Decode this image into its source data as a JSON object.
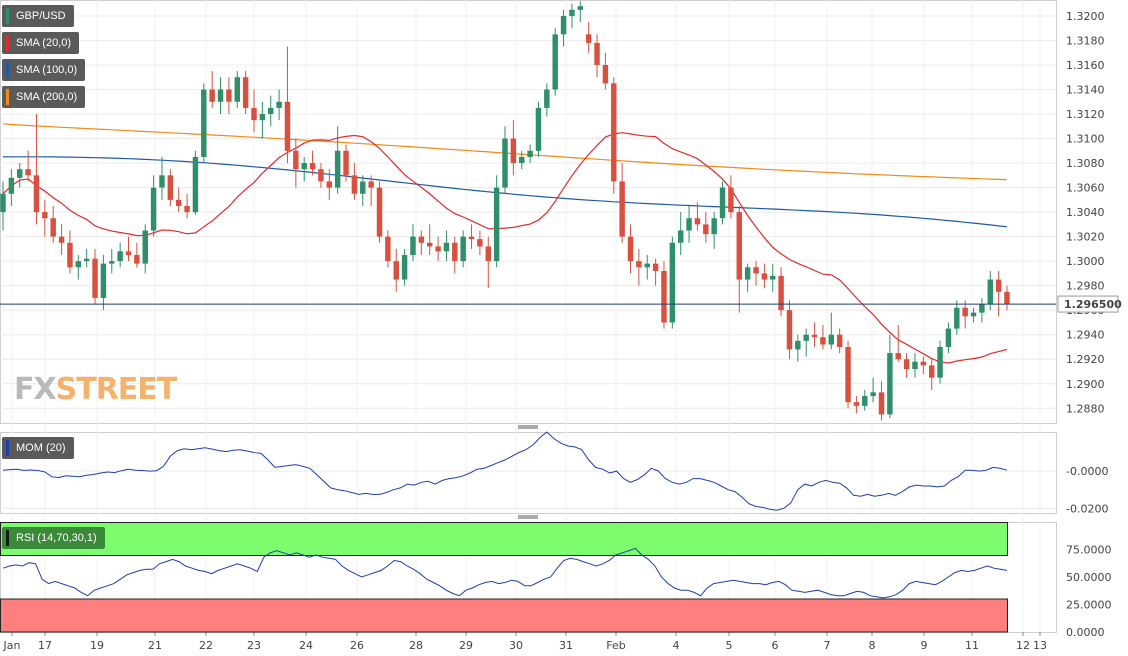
{
  "chart_data": {
    "type": "candlestick",
    "symbol": "GBP/USD",
    "indicators": [
      {
        "name": "SMA (20,0)",
        "color": "#e22b2b"
      },
      {
        "name": "SMA (100,0)",
        "color": "#1e5aa8"
      },
      {
        "name": "SMA (200,0)",
        "color": "#f28a18"
      }
    ],
    "last_price": "1.296500",
    "y_ticks": [
      "1.3200",
      "1.3180",
      "1.3160",
      "1.3140",
      "1.3120",
      "1.3100",
      "1.3080",
      "1.3060",
      "1.3040",
      "1.3020",
      "1.3000",
      "1.2980",
      "1.2960",
      "1.2940",
      "1.2920",
      "1.2900",
      "1.2880"
    ],
    "ylim": [
      1.2868,
      1.3213
    ],
    "x_labels": [
      "Jan",
      "17",
      "19",
      "21",
      "22",
      "23",
      "24",
      "26",
      "28",
      "29",
      "30",
      "31",
      "Feb",
      "4",
      "5",
      "6",
      "7",
      "8",
      "9",
      "11",
      "12",
      "13"
    ],
    "candles": [
      [
        1.304,
        1.3065,
        1.3025,
        1.3055
      ],
      [
        1.3055,
        1.3075,
        1.3045,
        1.3068
      ],
      [
        1.3068,
        1.308,
        1.306,
        1.3075
      ],
      [
        1.3075,
        1.309,
        1.3065,
        1.307
      ],
      [
        1.307,
        1.312,
        1.303,
        1.304
      ],
      [
        1.304,
        1.305,
        1.302,
        1.3035
      ],
      [
        1.3035,
        1.3045,
        1.3015,
        1.302
      ],
      [
        1.302,
        1.303,
        1.3005,
        1.3015
      ],
      [
        1.3015,
        1.3025,
        1.299,
        1.2995
      ],
      [
        1.2995,
        1.3005,
        1.2985,
        1.3
      ],
      [
        1.3,
        1.301,
        1.2995,
        1.3002
      ],
      [
        1.3002,
        1.301,
        1.2965,
        1.297
      ],
      [
        1.297,
        1.3005,
        1.296,
        1.2998
      ],
      [
        1.2998,
        1.301,
        1.299,
        1.3
      ],
      [
        1.3,
        1.3015,
        1.2995,
        1.3008
      ],
      [
        1.3008,
        1.302,
        1.3,
        1.3005
      ],
      [
        1.3005,
        1.3015,
        1.2995,
        1.2998
      ],
      [
        1.2998,
        1.303,
        1.299,
        1.3025
      ],
      [
        1.3025,
        1.307,
        1.302,
        1.306
      ],
      [
        1.306,
        1.3085,
        1.305,
        1.307
      ],
      [
        1.307,
        1.3075,
        1.3045,
        1.305
      ],
      [
        1.305,
        1.306,
        1.304,
        1.3045
      ],
      [
        1.3045,
        1.3055,
        1.3035,
        1.304
      ],
      [
        1.304,
        1.309,
        1.3038,
        1.3085
      ],
      [
        1.3085,
        1.3145,
        1.308,
        1.314
      ],
      [
        1.314,
        1.3155,
        1.3125,
        1.313
      ],
      [
        1.313,
        1.315,
        1.312,
        1.314
      ],
      [
        1.314,
        1.315,
        1.312,
        1.313
      ],
      [
        1.313,
        1.3155,
        1.3125,
        1.315
      ],
      [
        1.315,
        1.3155,
        1.312,
        1.3125
      ],
      [
        1.3125,
        1.314,
        1.3105,
        1.3115
      ],
      [
        1.3115,
        1.313,
        1.31,
        1.312
      ],
      [
        1.312,
        1.3135,
        1.311,
        1.3125
      ],
      [
        1.3125,
        1.314,
        1.3115,
        1.313
      ],
      [
        1.313,
        1.3175,
        1.308,
        1.309
      ],
      [
        1.309,
        1.31,
        1.306,
        1.3075
      ],
      [
        1.3075,
        1.3085,
        1.3065,
        1.308
      ],
      [
        1.308,
        1.309,
        1.307,
        1.3075
      ],
      [
        1.3075,
        1.308,
        1.306,
        1.3065
      ],
      [
        1.3065,
        1.3075,
        1.305,
        1.306
      ],
      [
        1.306,
        1.311,
        1.3055,
        1.309
      ],
      [
        1.309,
        1.3095,
        1.3065,
        1.307
      ],
      [
        1.307,
        1.308,
        1.305,
        1.3055
      ],
      [
        1.3055,
        1.307,
        1.3045,
        1.3065
      ],
      [
        1.3065,
        1.307,
        1.3045,
        1.306
      ],
      [
        1.306,
        1.3065,
        1.3015,
        1.302
      ],
      [
        1.302,
        1.3025,
        1.2995,
        1.3
      ],
      [
        1.3,
        1.301,
        1.2975,
        1.2985
      ],
      [
        1.2985,
        1.301,
        1.298,
        1.3005
      ],
      [
        1.3005,
        1.303,
        1.3,
        1.302
      ],
      [
        1.302,
        1.3025,
        1.3005,
        1.3015
      ],
      [
        1.3015,
        1.303,
        1.3005,
        1.3012
      ],
      [
        1.3012,
        1.302,
        1.3,
        1.3008
      ],
      [
        1.3008,
        1.3025,
        1.3,
        1.3015
      ],
      [
        1.3015,
        1.302,
        1.299,
        1.3
      ],
      [
        1.3,
        1.3025,
        1.2995,
        1.302
      ],
      [
        1.302,
        1.303,
        1.301,
        1.3018
      ],
      [
        1.3018,
        1.3025,
        1.3005,
        1.3012
      ],
      [
        1.3012,
        1.302,
        1.2978,
        1.3
      ],
      [
        1.3,
        1.307,
        1.2995,
        1.306
      ],
      [
        1.306,
        1.311,
        1.3055,
        1.31
      ],
      [
        1.31,
        1.3115,
        1.307,
        1.308
      ],
      [
        1.308,
        1.309,
        1.3075,
        1.3085
      ],
      [
        1.3085,
        1.3095,
        1.308,
        1.309
      ],
      [
        1.309,
        1.313,
        1.3085,
        1.3125
      ],
      [
        1.3125,
        1.3145,
        1.3118,
        1.314
      ],
      [
        1.314,
        1.319,
        1.3135,
        1.3185
      ],
      [
        1.3185,
        1.3205,
        1.3175,
        1.32
      ],
      [
        1.32,
        1.321,
        1.319,
        1.3205
      ],
      [
        1.3205,
        1.3212,
        1.3195,
        1.3208
      ],
      [
        1.3185,
        1.3195,
        1.317,
        1.3178
      ],
      [
        1.3178,
        1.3185,
        1.315,
        1.316
      ],
      [
        1.316,
        1.317,
        1.314,
        1.3145
      ],
      [
        1.3145,
        1.315,
        1.3055,
        1.3065
      ],
      [
        1.3065,
        1.308,
        1.3015,
        1.302
      ],
      [
        1.302,
        1.303,
        1.299,
        1.3
      ],
      [
        1.3,
        1.301,
        1.298,
        1.2995
      ],
      [
        1.2995,
        1.3005,
        1.2985,
        1.2998
      ],
      [
        1.2998,
        1.3002,
        1.298,
        1.2992
      ],
      [
        1.2992,
        1.3,
        1.2945,
        1.295
      ],
      [
        1.295,
        1.302,
        1.2945,
        1.3015
      ],
      [
        1.3015,
        1.304,
        1.3005,
        1.3025
      ],
      [
        1.3025,
        1.3045,
        1.3015,
        1.3035
      ],
      [
        1.3035,
        1.3048,
        1.3025,
        1.303
      ],
      [
        1.303,
        1.304,
        1.3015,
        1.3022
      ],
      [
        1.3022,
        1.304,
        1.301,
        1.3035
      ],
      [
        1.3035,
        1.3065,
        1.303,
        1.306
      ],
      [
        1.306,
        1.307,
        1.3035,
        1.304
      ],
      [
        1.304,
        1.3045,
        1.2958,
        1.2985
      ],
      [
        1.2985,
        1.2998,
        1.2975,
        1.2995
      ],
      [
        1.2995,
        1.3,
        1.298,
        1.299
      ],
      [
        1.299,
        1.2998,
        1.2978,
        1.2985
      ],
      [
        1.2985,
        1.2998,
        1.2975,
        1.2988
      ],
      [
        1.2988,
        1.2995,
        1.2955,
        1.296
      ],
      [
        1.296,
        1.2968,
        1.292,
        1.2928
      ],
      [
        1.2928,
        1.294,
        1.2918,
        1.2935
      ],
      [
        1.2935,
        1.2945,
        1.2922,
        1.294
      ],
      [
        1.294,
        1.295,
        1.293,
        1.2938
      ],
      [
        1.2938,
        1.2948,
        1.2928,
        1.2932
      ],
      [
        1.2932,
        1.2958,
        1.2928,
        1.294
      ],
      [
        1.294,
        1.2945,
        1.2925,
        1.293
      ],
      [
        1.293,
        1.2935,
        1.288,
        1.2885
      ],
      [
        1.2885,
        1.289,
        1.2876,
        1.2882
      ],
      [
        1.2882,
        1.2895,
        1.2878,
        1.289
      ],
      [
        1.289,
        1.2905,
        1.2885,
        1.2893
      ],
      [
        1.2893,
        1.2902,
        1.287,
        1.2875
      ],
      [
        1.2875,
        1.294,
        1.2872,
        1.2925
      ],
      [
        1.2925,
        1.2948,
        1.2918,
        1.292
      ],
      [
        1.292,
        1.2925,
        1.2905,
        1.2912
      ],
      [
        1.2912,
        1.2925,
        1.2905,
        1.2918
      ],
      [
        1.2918,
        1.2922,
        1.2908,
        1.2915
      ],
      [
        1.2915,
        1.292,
        1.2895,
        1.2905
      ],
      [
        1.2905,
        1.2935,
        1.29,
        1.293
      ],
      [
        1.293,
        1.295,
        1.2925,
        1.2945
      ],
      [
        1.2945,
        1.2968,
        1.294,
        1.2962
      ],
      [
        1.2962,
        1.2968,
        1.2945,
        1.2955
      ],
      [
        1.2955,
        1.2962,
        1.295,
        1.2958
      ],
      [
        1.2958,
        1.297,
        1.295,
        1.2965
      ],
      [
        1.2965,
        1.2992,
        1.296,
        1.2985
      ],
      [
        1.2985,
        1.2992,
        1.2955,
        1.2975
      ],
      [
        1.2975,
        1.298,
        1.296,
        1.2965
      ]
    ],
    "mom": {
      "name": "MOM (20)",
      "y_ticks": [
        "-0.0000",
        "-0.0200"
      ],
      "ylim": [
        -0.0225,
        0.021
      ],
      "values": [
        0.0005,
        0.0008,
        0.001,
        0.0004,
        0.0006,
        0.0003,
        -0.0005,
        -0.003,
        -0.0035,
        -0.0025,
        -0.0028,
        -0.003,
        -0.0022,
        -0.0018,
        -0.001,
        -0.0005,
        -0.0008,
        0.0002,
        0.001,
        0.0005,
        0.0003,
        0.0,
        0.0002,
        0.0025,
        0.008,
        0.011,
        0.012,
        0.0115,
        0.012,
        0.0125,
        0.0118,
        0.011,
        0.0105,
        0.0112,
        0.0115,
        0.0108,
        0.01,
        0.0095,
        0.006,
        0.002,
        0.0025,
        0.003,
        0.0035,
        0.0025,
        0.0015,
        -0.002,
        -0.0055,
        -0.009,
        -0.01,
        -0.0105,
        -0.0115,
        -0.0125,
        -0.012,
        -0.0125,
        -0.0125,
        -0.0115,
        -0.01,
        -0.009,
        -0.007,
        -0.0075,
        -0.006,
        -0.0055,
        -0.007,
        -0.005,
        -0.004,
        -0.0035,
        -0.0025,
        -0.001,
        0.001,
        0.0015,
        0.003,
        0.0045,
        0.006,
        0.008,
        0.01,
        0.0115,
        0.014,
        0.018,
        0.021,
        0.0175,
        0.015,
        0.0135,
        0.013,
        0.0115,
        0.006,
        0.002,
        0.001,
        -0.001,
        0.0,
        -0.004,
        -0.006,
        -0.0045,
        -0.002,
        0.0015,
        0.0,
        -0.004,
        -0.006,
        -0.007,
        -0.006,
        -0.004,
        -0.004,
        -0.005,
        -0.006,
        -0.008,
        -0.01,
        -0.011,
        -0.014,
        -0.0175,
        -0.019,
        -0.0195,
        -0.0205,
        -0.021,
        -0.02,
        -0.017,
        -0.01,
        -0.007,
        -0.008,
        -0.006,
        -0.005,
        -0.006,
        -0.0065,
        -0.009,
        -0.013,
        -0.0135,
        -0.0125,
        -0.0135,
        -0.013,
        -0.012,
        -0.013,
        -0.011,
        -0.0085,
        -0.0075,
        -0.008,
        -0.008,
        -0.0085,
        -0.008,
        -0.005,
        -0.003,
        0.0005,
        0.0005,
        0.0,
        0.0005,
        0.002,
        0.0015,
        0.0005
      ]
    },
    "rsi": {
      "name": "RSI (14,70,30,1)",
      "y_ticks": [
        "75.0000",
        "50.0000",
        "25.0000",
        "0.0000"
      ],
      "ylim": [
        0,
        100
      ],
      "overbought": 70,
      "oversold": 30,
      "values": [
        58,
        60,
        61,
        60,
        63,
        62,
        48,
        44,
        46,
        44,
        42,
        40,
        36,
        33,
        38,
        40,
        42,
        44,
        48,
        52,
        54,
        56,
        57,
        57,
        62,
        64,
        66,
        64,
        60,
        58,
        56,
        55,
        53,
        56,
        58,
        60,
        62,
        60,
        58,
        55,
        68,
        72,
        74,
        72,
        70,
        72,
        70,
        68,
        70,
        68,
        67,
        66,
        60,
        56,
        53,
        50,
        52,
        54,
        56,
        60,
        65,
        64,
        60,
        57,
        53,
        48,
        45,
        42,
        38,
        35,
        33,
        38,
        40,
        43,
        45,
        46,
        44,
        45,
        47,
        46,
        42,
        42,
        45,
        48,
        50,
        58,
        65,
        67,
        66,
        64,
        62,
        60,
        62,
        65,
        70,
        72,
        74,
        76,
        70,
        66,
        60,
        50,
        44,
        40,
        38,
        38,
        36,
        33,
        40,
        44,
        45,
        46,
        47,
        46,
        45,
        44,
        44,
        43,
        45,
        46,
        43,
        38,
        37,
        36,
        37,
        38,
        36,
        34,
        33,
        33,
        35,
        37,
        36,
        33,
        32,
        31,
        32,
        34,
        38,
        44,
        46,
        45,
        44,
        43,
        46,
        50,
        54,
        56,
        55,
        56,
        58,
        60,
        58,
        57,
        56
      ]
    },
    "axis_colors": {
      "up": "#2f8f6a",
      "down": "#d9503f",
      "last_price_line": "#1c3f70"
    },
    "watermark": "FXSTREET"
  }
}
